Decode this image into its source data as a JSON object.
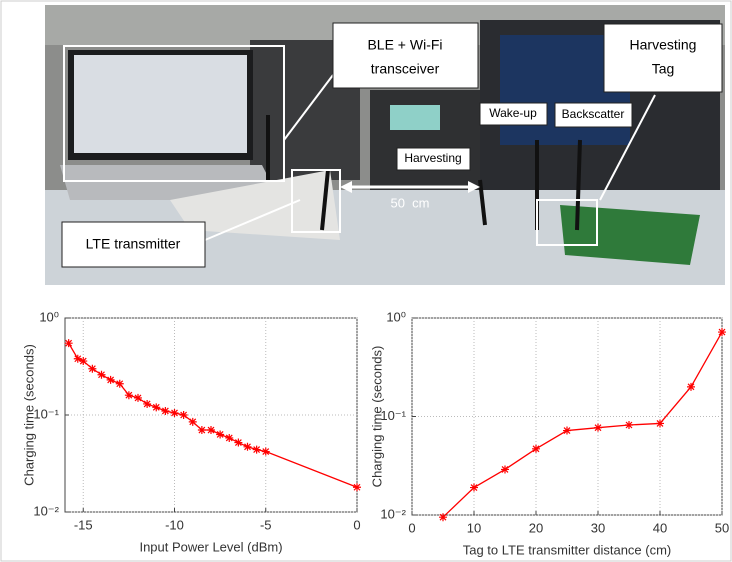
{
  "photo": {
    "ble_label": [
      "BLE + Wi-Fi",
      "transceiver"
    ],
    "tag_label": [
      "Harvesting",
      "Tag"
    ],
    "wakeup_label": "Wake-up",
    "backscatter_label": "Backscatter",
    "harvesting_label": "Harvesting",
    "distance_label": "50  cm",
    "lte_label": "LTE transmitter"
  },
  "chart_data": [
    {
      "type": "line",
      "xlabel": "Input Power Level (dBm)",
      "ylabel": "Charging time (seconds)",
      "x": [
        -15.8,
        -15.3,
        -15,
        -14.5,
        -14,
        -13.5,
        -13,
        -12.5,
        -12,
        -11.5,
        -11,
        -10.5,
        -10,
        -9.5,
        -9,
        -8.5,
        -8,
        -7.5,
        -7,
        -6.5,
        -6,
        -5.5,
        -5,
        0
      ],
      "values": [
        0.55,
        0.38,
        0.36,
        0.3,
        0.26,
        0.23,
        0.21,
        0.16,
        0.15,
        0.13,
        0.12,
        0.11,
        0.105,
        0.1,
        0.085,
        0.07,
        0.07,
        0.063,
        0.058,
        0.052,
        0.047,
        0.044,
        0.042,
        0.018
      ],
      "color": "#ff0000",
      "yscale": "log",
      "grid": true,
      "xlim": [
        -16,
        0
      ],
      "xticks": [
        -15,
        -10,
        -5,
        0
      ],
      "ylim": [
        0.01,
        1
      ],
      "yticks": [
        {
          "value": 0.01,
          "label": "10⁻²"
        },
        {
          "value": 0.1,
          "label": "10⁻¹"
        },
        {
          "value": 1,
          "label": "10⁰"
        }
      ]
    },
    {
      "type": "line",
      "xlabel": "Tag to LTE transmitter distance (cm)",
      "ylabel": "Charging time (seconds)",
      "x": [
        5,
        10,
        15,
        20,
        25,
        30,
        35,
        40,
        45,
        50
      ],
      "values": [
        0.0095,
        0.019,
        0.029,
        0.047,
        0.072,
        0.077,
        0.082,
        0.085,
        0.2,
        0.72
      ],
      "color": "#ff0000",
      "yscale": "log",
      "grid": true,
      "xlim": [
        0,
        50
      ],
      "xticks": [
        0,
        10,
        20,
        30,
        40,
        50
      ],
      "ylim": [
        0.01,
        1
      ],
      "yticks": [
        {
          "value": 0.01,
          "label": "10⁻²"
        },
        {
          "value": 0.1,
          "label": "10⁻¹"
        },
        {
          "value": 1,
          "label": "10⁰"
        }
      ]
    }
  ]
}
